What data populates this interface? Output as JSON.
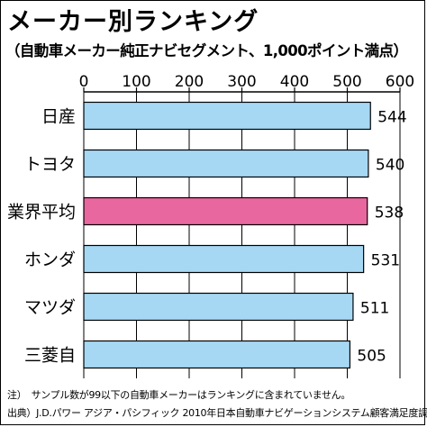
{
  "title": "メーカー別ランキング",
  "subtitle": "（自動車メーカー純正ナビセグメント、1,000ポイント満点）",
  "notes": {
    "note1": "注）　サンプル数が99以下の自動車メーカーはランキングに含まれていません。",
    "note2": "出典）J.D.パワー アジア・パシフィック 2010年日本自動車ナビゲーションシステム顧客満足度調査℠"
  },
  "colors": {
    "bar": "#a6d8f4",
    "highlight": "#e8679f",
    "border": "#000000"
  },
  "chart_data": {
    "type": "bar",
    "orientation": "horizontal",
    "title": "メーカー別ランキング",
    "subtitle": "（自動車メーカー純正ナビセグメント、1,000ポイント満点）",
    "categories": [
      "日産",
      "トヨタ",
      "業界平均",
      "ホンダ",
      "マツダ",
      "三菱自"
    ],
    "values": [
      544,
      540,
      538,
      531,
      511,
      505
    ],
    "highlight_category": "業界平均",
    "xlim": [
      0,
      600
    ],
    "xticks": [
      0,
      100,
      200,
      300,
      400,
      500,
      600
    ],
    "xticks_position": "top",
    "grid": true,
    "xlabel": "",
    "ylabel": ""
  }
}
